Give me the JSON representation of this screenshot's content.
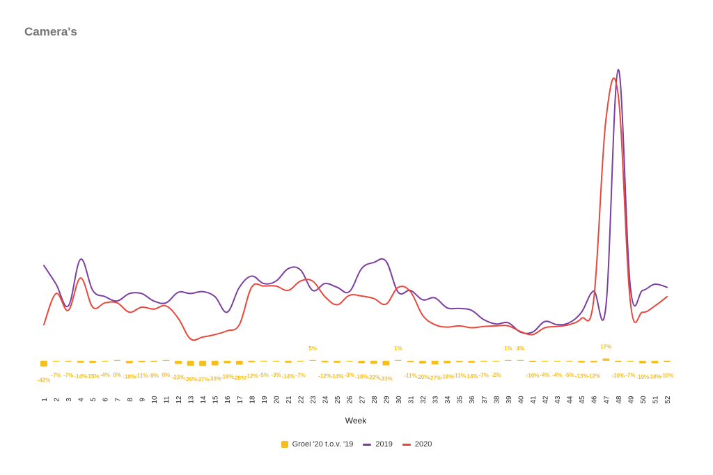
{
  "chart_data": {
    "type": "line",
    "title": "Camera's",
    "xlabel": "Week",
    "ylabel": "",
    "categories": [
      "1",
      "2",
      "3",
      "4",
      "5",
      "6",
      "7",
      "8",
      "9",
      "10",
      "11",
      "12",
      "13",
      "14",
      "15",
      "16",
      "17",
      "18",
      "19",
      "20",
      "21",
      "22",
      "23",
      "24",
      "25",
      "26",
      "27",
      "28",
      "29",
      "30",
      "31",
      "32",
      "33",
      "34",
      "35",
      "36",
      "37",
      "38",
      "39",
      "40",
      "41",
      "42",
      "43",
      "44",
      "45",
      "46",
      "47",
      "48",
      "49",
      "50",
      "51",
      "52"
    ],
    "line_ylim": [
      0,
      420
    ],
    "bar_ylim": [
      -300,
      300
    ],
    "grid": false,
    "legend_position": "bottom",
    "series": [
      {
        "name": "Groei '20 t.o.v. '19",
        "kind": "bar",
        "color": "#F6BE1E",
        "values": [
          -42,
          -7,
          -7,
          -14,
          -15,
          -4,
          0,
          -18,
          -11,
          -9,
          0,
          -23,
          -36,
          -37,
          -33,
          -18,
          -28,
          -12,
          -5,
          -3,
          -14,
          -7,
          5,
          -12,
          -14,
          -3,
          -18,
          -22,
          -33,
          1,
          -11,
          -20,
          -27,
          -18,
          -11,
          -14,
          -7,
          -2,
          1,
          4,
          -10,
          -4,
          -4,
          -5,
          -13,
          -12,
          17,
          -10,
          -7,
          -19,
          -18,
          -10
        ],
        "labels": [
          "-42%",
          "-7%",
          "-7%",
          "-14%",
          "-15%",
          "-4%",
          "0%",
          "-18%",
          "-11%",
          "-9%",
          "0%",
          "-23%",
          "-36%",
          "-37%",
          "-33%",
          "-18%",
          "-28%",
          "-12%",
          "-5%",
          "-3%",
          "-14%",
          "-7%",
          "5%",
          "-12%",
          "-14%",
          "-3%",
          "-18%",
          "-22%",
          "-33%",
          "1%",
          "-11%",
          "-20%",
          "-27%",
          "-18%",
          "-11%",
          "-14%",
          "-7%",
          "-2%",
          "1%",
          "4%",
          "-10%",
          "-4%",
          "-4%",
          "-5%",
          "-13%",
          "-12%",
          "17%",
          "-10%",
          "-7%",
          "-19%",
          "-18%",
          "-10%"
        ]
      },
      {
        "name": "2019",
        "kind": "line",
        "color": "#7B3FA0",
        "values": [
          105,
          75,
          40,
          115,
          65,
          55,
          48,
          60,
          60,
          48,
          45,
          62,
          60,
          63,
          55,
          30,
          70,
          88,
          76,
          80,
          100,
          98,
          65,
          76,
          70,
          63,
          100,
          110,
          112,
          62,
          65,
          50,
          53,
          37,
          36,
          33,
          18,
          11,
          13,
          -2,
          -2,
          15,
          10,
          13,
          30,
          64,
          40,
          420,
          70,
          65,
          75,
          70
        ]
      },
      {
        "name": "2020",
        "kind": "line",
        "color": "#E8473B",
        "values": [
          10,
          60,
          33,
          85,
          38,
          45,
          45,
          30,
          38,
          35,
          40,
          20,
          -13,
          -10,
          -6,
          0,
          10,
          70,
          72,
          72,
          65,
          80,
          80,
          55,
          42,
          57,
          56,
          52,
          43,
          70,
          63,
          25,
          10,
          6,
          8,
          5,
          7,
          8,
          8,
          -1,
          -6,
          5,
          7,
          10,
          20,
          50,
          340,
          380,
          46,
          30,
          40,
          55
        ]
      }
    ]
  }
}
